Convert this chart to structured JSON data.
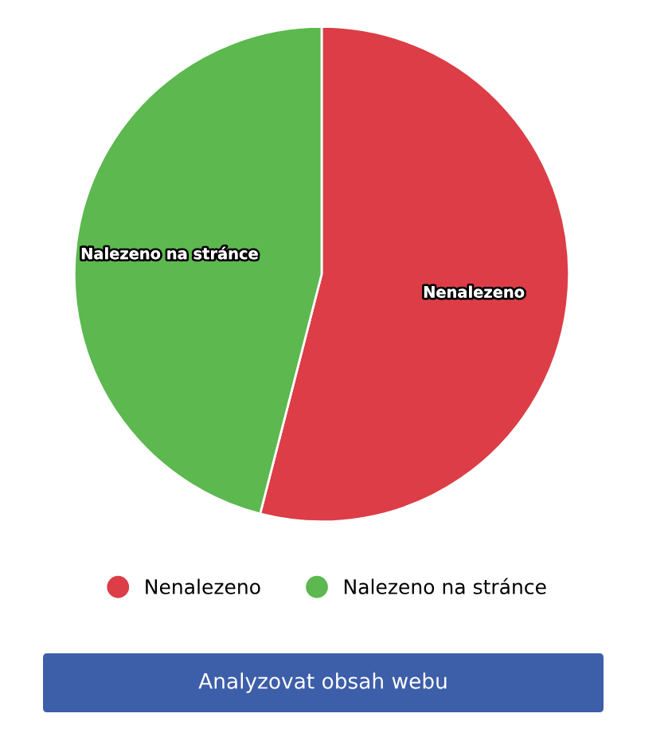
{
  "chart_data": {
    "type": "pie",
    "categories": [
      "Nenalezeno",
      "Nalezeno na stránce"
    ],
    "values": [
      54,
      46
    ],
    "colors": [
      "#dc3d47",
      "#5cb84f"
    ],
    "legend": "bottom",
    "annotations": [
      "Analyzovat obsah webu"
    ]
  }
}
